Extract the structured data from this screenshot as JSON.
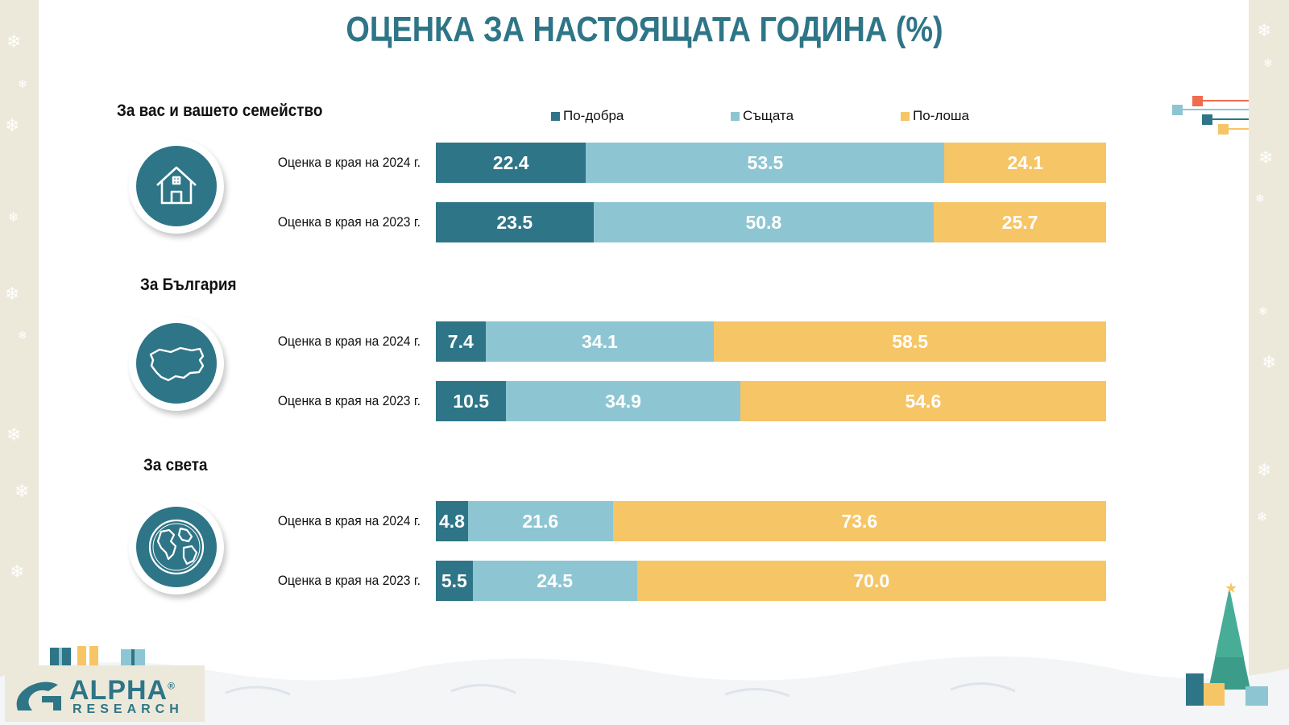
{
  "title": "ОЦЕНКА ЗА НАСТОЯЩАТА ГОДИНА (%)",
  "brand": {
    "name": "ALPHA",
    "sub": "RESEARCH",
    "mark": "®"
  },
  "colors": {
    "better": "#2e7587",
    "same": "#8dc6d2",
    "worse": "#f6c566",
    "accent": "#2e7587"
  },
  "chart_data": {
    "type": "bar",
    "stacked": true,
    "orientation": "horizontal",
    "title": "ОЦЕНКА ЗА НАСТОЯЩАТА ГОДИНА (%)",
    "legend": [
      "По-добра",
      "Същата",
      "По-лоша"
    ],
    "legend_position": "top",
    "xlim": [
      0,
      100
    ],
    "groups": [
      {
        "title": "За вас и вашето семейство",
        "icon": "house-icon",
        "rows": [
          {
            "label": "Оценка в края на 2024 г.",
            "values": [
              22.4,
              53.5,
              24.1
            ],
            "display": [
              "22.4",
              "53.5",
              "24.1"
            ]
          },
          {
            "label": "Оценка в края на 2023 г.",
            "values": [
              23.5,
              50.8,
              25.7
            ],
            "display": [
              "23.5",
              "50.8",
              "25.7"
            ]
          }
        ]
      },
      {
        "title": "За България",
        "icon": "bulgaria-map-icon",
        "rows": [
          {
            "label": "Оценка в края на 2024 г.",
            "values": [
              7.4,
              34.1,
              58.5
            ],
            "display": [
              "7.4",
              "34.1",
              "58.5"
            ]
          },
          {
            "label": "Оценка в края на 2023 г.",
            "values": [
              10.5,
              34.9,
              54.6
            ],
            "display": [
              "10.5",
              "34.9",
              "54.6"
            ]
          }
        ]
      },
      {
        "title": "За света",
        "icon": "globe-icon",
        "rows": [
          {
            "label": "Оценка в края на 2024 г.",
            "values": [
              4.8,
              21.6,
              73.6
            ],
            "display": [
              "4.8",
              "21.6",
              "73.6"
            ]
          },
          {
            "label": "Оценка в края на 2023 г.",
            "values": [
              5.5,
              24.5,
              70.0
            ],
            "display": [
              "5.5",
              "24.5",
              "70.0"
            ]
          }
        ]
      }
    ]
  }
}
